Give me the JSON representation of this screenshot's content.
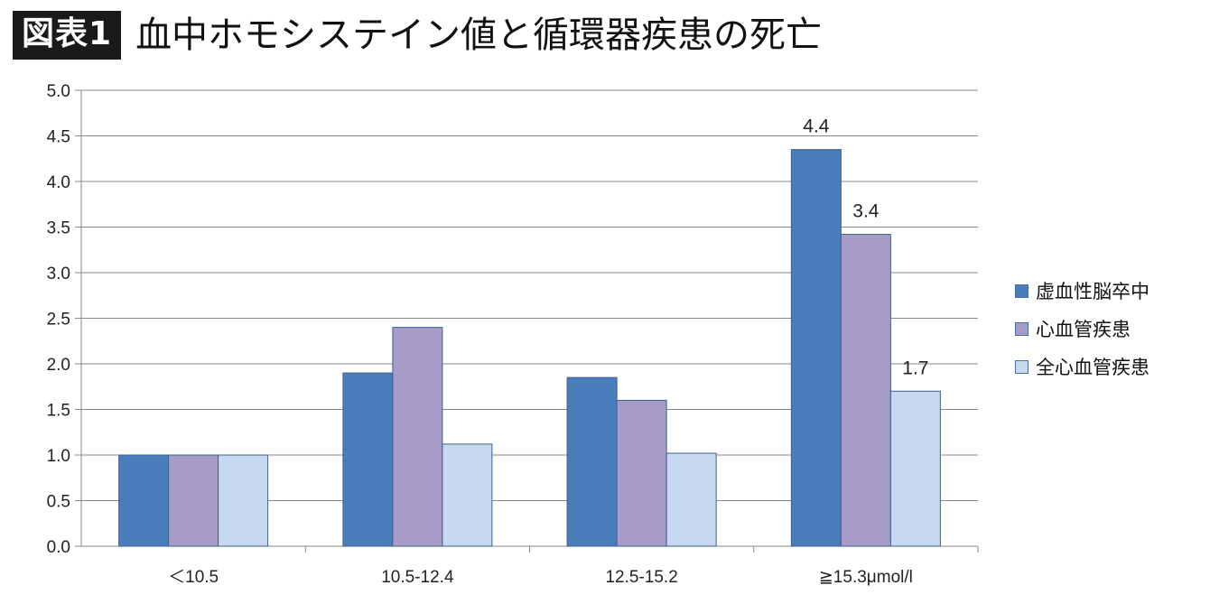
{
  "header": {
    "badge": "図表1",
    "title": "血中ホモシステイン値と循環器疾患の死亡"
  },
  "colors": {
    "series1": "#4a7ebb",
    "series2": "#a79cc8",
    "series3": "#c6d9f1",
    "axis": "#8a8a8a",
    "grid": "#8a8a8a"
  },
  "chart_data": {
    "type": "bar",
    "categories": [
      "＜10.5",
      "10.5-12.4",
      "12.5-15.2",
      "≧15.3μmol/l"
    ],
    "series": [
      {
        "name": "虚血性脳卒中",
        "values": [
          1.0,
          1.9,
          1.85,
          4.35
        ]
      },
      {
        "name": "心血管疾患",
        "values": [
          1.0,
          2.4,
          1.6,
          3.42
        ]
      },
      {
        "name": "全心血管疾患",
        "values": [
          1.0,
          1.12,
          1.02,
          1.7
        ]
      }
    ],
    "data_labels": [
      {
        "series": 0,
        "category": 3,
        "text": "4.4"
      },
      {
        "series": 1,
        "category": 3,
        "text": "3.4"
      },
      {
        "series": 2,
        "category": 3,
        "text": "1.7"
      }
    ],
    "yticks": [
      "0.0",
      "0.5",
      "1.0",
      "1.5",
      "2.0",
      "2.5",
      "3.0",
      "3.5",
      "4.0",
      "4.5",
      "5.0"
    ],
    "ylim": [
      0,
      5
    ],
    "grid": true,
    "legend_position": "right"
  }
}
